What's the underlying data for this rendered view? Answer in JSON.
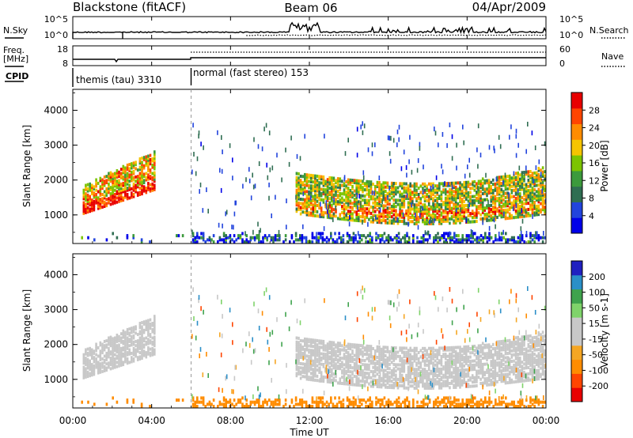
{
  "header": {
    "station": "Blackstone (fitACF)",
    "beam": "Beam 06",
    "date": "04/Apr/2009"
  },
  "noise_panel": {
    "left_label": "N.Sky",
    "right_label": "N.Search",
    "left_ticks": [
      "10^5",
      "10^0"
    ],
    "right_ticks": [
      "10^5",
      "10^0"
    ]
  },
  "freq_panel": {
    "left_label_1": "Freq.",
    "left_label_2": "[MHz]",
    "right_label": "Nave",
    "left_ticks": [
      "18",
      "8"
    ],
    "right_ticks": [
      "60",
      "0"
    ]
  },
  "cpid_panel": {
    "label": "CPID",
    "modes": [
      {
        "text": "themis (tau) 3310",
        "start": "00:00",
        "end": "06:00"
      },
      {
        "text": "normal (fast stereo) 153",
        "start": "06:00",
        "end": "24:00"
      }
    ]
  },
  "x_axis": {
    "label": "Time UT",
    "ticks": [
      "00:00",
      "04:00",
      "08:00",
      "12:00",
      "16:00",
      "20:00",
      "00:00"
    ],
    "range_hours": [
      0,
      24
    ]
  },
  "chart_data": [
    {
      "type": "heatmap",
      "name": "power",
      "ylabel": "Slant Range [km]",
      "ylim": [
        180,
        4600
      ],
      "yticks": [
        "1000",
        "2000",
        "3000",
        "4000"
      ],
      "colorbar_label": "Power [dB]",
      "colorbar_ticks": [
        "28",
        "24",
        "20",
        "16",
        "12",
        "8",
        "4"
      ],
      "colorbar_range": [
        0,
        30
      ],
      "colors": [
        "#0000e8",
        "#2244dd",
        "#2f6e52",
        "#3c9a3c",
        "#7cc400",
        "#f5c400",
        "#ff8c00",
        "#ff4500",
        "#e80000"
      ],
      "echo_regions": [
        {
          "t": [
            0.5,
            4.2
          ],
          "range_km": [
            1000,
            2800
          ],
          "value_dB": 20
        },
        {
          "t": [
            11.3,
            24.0
          ],
          "range_km": [
            700,
            2300
          ],
          "value_dB": 16
        },
        {
          "t": [
            0.0,
            24.0
          ],
          "range_km": [
            180,
            450
          ],
          "value_dB": 6
        }
      ]
    },
    {
      "type": "heatmap",
      "name": "velocity",
      "ylabel": "Slant Range [km]",
      "ylim": [
        180,
        4600
      ],
      "yticks": [
        "1000",
        "2000",
        "3000",
        "4000"
      ],
      "colorbar_label": "Velocity [m s-1]",
      "colorbar_ticks": [
        "200",
        "100",
        "50",
        "15",
        "-15",
        "-50",
        "-100",
        "-200"
      ],
      "colorbar_range": [
        -250,
        250
      ],
      "colors": [
        "#e80000",
        "#ff4500",
        "#ff8c00",
        "#f5a623",
        "#c8c8c8",
        "#c8c8c8",
        "#7fd36a",
        "#3fa34d",
        "#2b8fc8",
        "#2020c0"
      ],
      "echo_regions": [
        {
          "t": [
            0.5,
            4.2
          ],
          "range_km": [
            1000,
            2800
          ],
          "value_ms": 0
        },
        {
          "t": [
            11.3,
            24.0
          ],
          "range_km": [
            700,
            2300
          ],
          "value_ms": 0
        },
        {
          "t": [
            0.0,
            24.0
          ],
          "range_km": [
            180,
            450
          ],
          "value_ms": -120
        }
      ]
    }
  ]
}
